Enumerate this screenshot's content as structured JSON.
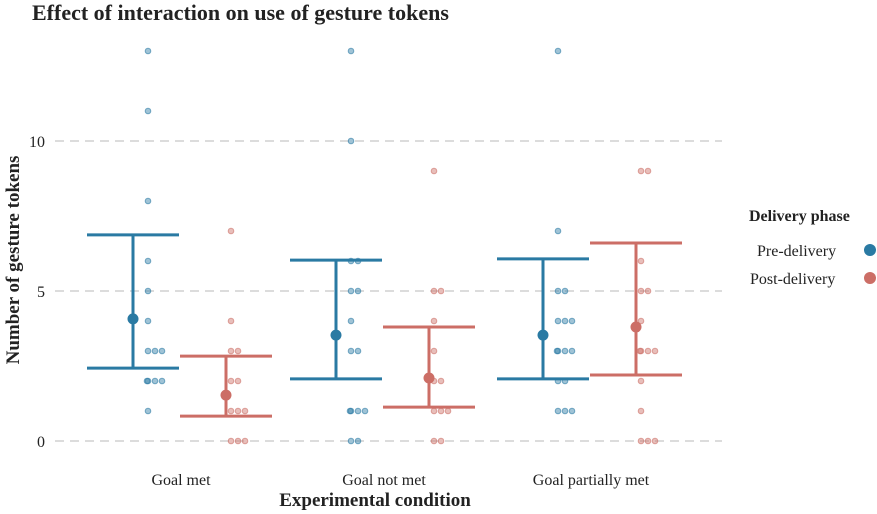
{
  "chart_data": {
    "type": "scatter",
    "title": "Effect of interaction on use of gesture tokens",
    "xlabel": "Experimental condition",
    "ylabel": "Number of gesture tokens",
    "ylim": [
      -0.5,
      13.5
    ],
    "yticks": [
      0,
      5,
      10
    ],
    "ytick_labels": [
      "0",
      "5",
      "10"
    ],
    "categories": [
      "Goal met",
      "Goal not met",
      "Goal partially met"
    ],
    "legend": {
      "title": "Delivery phase",
      "position": "right",
      "entries": [
        "Pre-delivery",
        "Post-delivery"
      ]
    },
    "colors": {
      "Pre-delivery": "#2a7aa3",
      "Post-delivery": "#cc6e66"
    },
    "series": [
      {
        "name": "Pre-delivery",
        "means": [
          4.07,
          3.53,
          3.53
        ],
        "ci_low": [
          2.43,
          2.07,
          2.07
        ],
        "ci_high": [
          6.87,
          6.03,
          6.07
        ],
        "points": [
          [
            13,
            11,
            8,
            6,
            5,
            4,
            3,
            3,
            3,
            2,
            2,
            2,
            2,
            1
          ],
          [
            13,
            10,
            6,
            6,
            5,
            5,
            4,
            3,
            3,
            1,
            1,
            1,
            1,
            0,
            0
          ],
          [
            13,
            7,
            5,
            5,
            4,
            4,
            4,
            3,
            3,
            3,
            3,
            2,
            2,
            1,
            1,
            1
          ]
        ]
      },
      {
        "name": "Post-delivery",
        "means": [
          1.53,
          2.1,
          3.8
        ],
        "ci_low": [
          0.83,
          1.13,
          2.2
        ],
        "ci_high": [
          2.83,
          3.8,
          6.6
        ],
        "points": [
          [
            7,
            4,
            3,
            3,
            2,
            2,
            1,
            1,
            1,
            0,
            0,
            0
          ],
          [
            9,
            5,
            5,
            4,
            3,
            2,
            2,
            1,
            1,
            1,
            0,
            0
          ],
          [
            9,
            9,
            6,
            5,
            5,
            4,
            3,
            3,
            3,
            3,
            2,
            1,
            0,
            0,
            0
          ]
        ]
      }
    ]
  }
}
